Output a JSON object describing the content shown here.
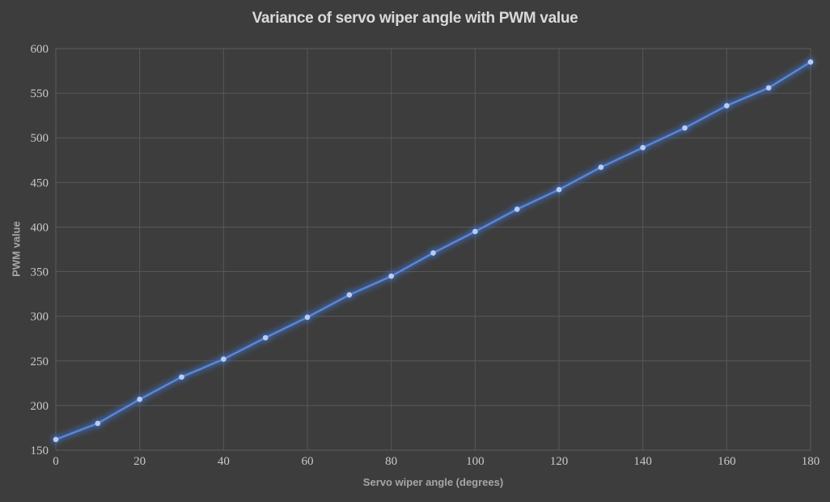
{
  "chart_data": {
    "type": "line",
    "title": "Variance of servo wiper angle with PWM value",
    "xlabel": "Servo wiper angle (degrees)",
    "ylabel": "PWM value",
    "x": [
      0,
      10,
      20,
      30,
      40,
      50,
      60,
      70,
      80,
      90,
      100,
      110,
      120,
      130,
      140,
      150,
      160,
      170,
      180
    ],
    "series": [
      {
        "name": "PWM value",
        "values": [
          162,
          180,
          207,
          232,
          252,
          276,
          299,
          324,
          345,
          371,
          395,
          420,
          442,
          467,
          489,
          511,
          536,
          556,
          585
        ]
      }
    ],
    "xlim": [
      0,
      180
    ],
    "ylim": [
      150,
      600
    ],
    "xticks": [
      0,
      20,
      40,
      60,
      80,
      100,
      120,
      140,
      160,
      180
    ],
    "yticks": [
      150,
      200,
      250,
      300,
      350,
      400,
      450,
      500,
      550,
      600
    ],
    "grid": true,
    "legend_position": "none",
    "marker": "circle",
    "colors": {
      "background": "#3d3d3d",
      "gridline": "#585858",
      "plot_border": "#5d5d5d",
      "line": "#5b87d7",
      "line_glow": "#3f6cc0",
      "marker_fill": "#b9cdee",
      "title_text": "#d9d9d9",
      "tick_text": "#c9c9c9",
      "axis_title_text": "#a6a6a6"
    }
  }
}
